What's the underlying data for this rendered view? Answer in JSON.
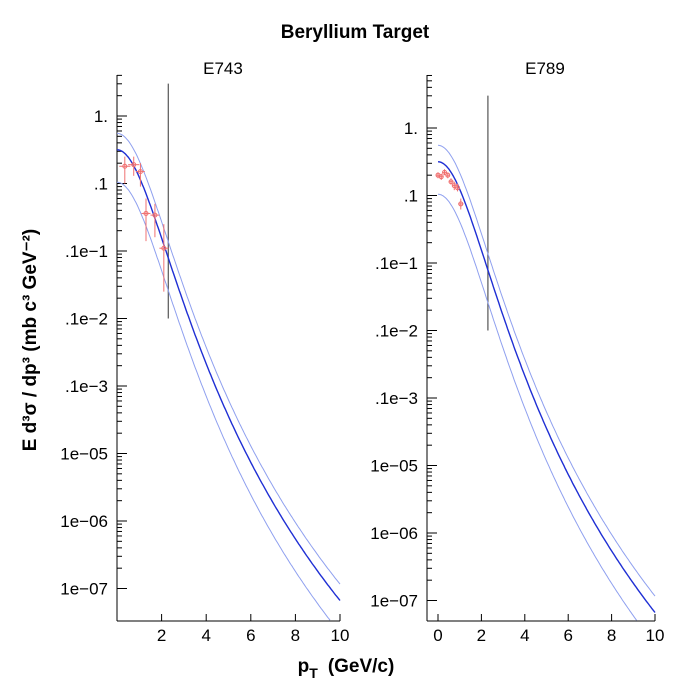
{
  "figure": {
    "title": "Beryllium Target",
    "xlabel_main": "p",
    "xlabel_sub": "T",
    "xlabel_units": "(GeV/c)",
    "ylabel": "E d³σ / dp³  (mb c³ GeV⁻²)"
  },
  "chart_data": [
    {
      "type": "line",
      "title": "E743",
      "yscale": "log",
      "xlim": [
        0,
        10
      ],
      "ylim_log10": [
        -7.3,
        0.48
      ],
      "xticks": [
        2,
        4,
        6,
        8,
        10
      ],
      "xtick_labels": [
        "2",
        "4",
        "6",
        "8",
        "10"
      ],
      "yticks_log10": [
        0,
        -1,
        -2,
        -3,
        -4,
        -5,
        -6,
        -7
      ],
      "ytick_labels": [
        "1.",
        ".1",
        ".1e−1",
        ".1e−2",
        ".1e−3",
        "1e−05",
        "1e−06",
        "1e−07"
      ],
      "cutoff_line": {
        "x": 2.3,
        "y_log10_range": [
          -3.0,
          0.48
        ]
      },
      "model": {
        "norm_log10": -0.5,
        "upper_factor": 1.75,
        "lower_factor": 0.33,
        "colors": [
          "#1f2fd4",
          "#8fa0ef"
        ]
      },
      "series": [
        {
          "name": "E743 data",
          "color": "#f07070",
          "points": [
            {
              "x": 0.35,
              "y": 0.18,
              "xerr": 0.25,
              "ylo": 0.1,
              "yhi": 0.25
            },
            {
              "x": 0.75,
              "y": 0.19,
              "xerr": 0.25,
              "ylo": 0.13,
              "yhi": 0.25
            },
            {
              "x": 1.05,
              "y": 0.15,
              "xerr": 0.2,
              "ylo": 0.09,
              "yhi": 0.2
            },
            {
              "x": 1.3,
              "y": 0.036,
              "xerr": 0.2,
              "ylo": 0.014,
              "yhi": 0.06
            },
            {
              "x": 1.7,
              "y": 0.034,
              "xerr": 0.2,
              "ylo": 0.016,
              "yhi": 0.05
            },
            {
              "x": 2.1,
              "y": 0.011,
              "xerr": 0.2,
              "ylo": 0.0025,
              "yhi": 0.025
            }
          ]
        }
      ]
    },
    {
      "type": "line",
      "title": "E789",
      "yscale": "log",
      "xlim": [
        -0.2,
        10
      ],
      "ylim_log10": [
        -7.3,
        0.48
      ],
      "xticks": [
        0,
        2,
        4,
        6,
        8,
        10
      ],
      "xtick_labels": [
        "0",
        "2",
        "4",
        "6",
        "8",
        "10"
      ],
      "yticks_log10": [
        0,
        -1,
        -2,
        -3,
        -4,
        -5,
        -6,
        -7
      ],
      "ytick_labels": [
        "1.",
        ".1",
        ".1e−1",
        ".1e−2",
        ".1e−3",
        "1e−05",
        "1e−06",
        "1e−07"
      ],
      "cutoff_line": {
        "x": 2.3,
        "y_log10_range": [
          -3.0,
          0.48
        ]
      },
      "model": {
        "norm_log10": -0.5,
        "upper_factor": 1.75,
        "lower_factor": 0.33,
        "colors": [
          "#1f2fd4",
          "#8fa0ef"
        ]
      },
      "series": [
        {
          "name": "E789 data",
          "color": "#f07070",
          "points": [
            {
              "x": 0.0,
              "y": 0.2,
              "xerr": 0.08,
              "ylo": 0.18,
              "yhi": 0.22
            },
            {
              "x": 0.15,
              "y": 0.19,
              "xerr": 0.08,
              "ylo": 0.17,
              "yhi": 0.21
            },
            {
              "x": 0.3,
              "y": 0.22,
              "xerr": 0.08,
              "ylo": 0.2,
              "yhi": 0.245
            },
            {
              "x": 0.45,
              "y": 0.2,
              "xerr": 0.08,
              "ylo": 0.18,
              "yhi": 0.22
            },
            {
              "x": 0.6,
              "y": 0.16,
              "xerr": 0.08,
              "ylo": 0.145,
              "yhi": 0.18
            },
            {
              "x": 0.75,
              "y": 0.14,
              "xerr": 0.08,
              "ylo": 0.12,
              "yhi": 0.16
            },
            {
              "x": 0.9,
              "y": 0.13,
              "xerr": 0.08,
              "ylo": 0.115,
              "yhi": 0.15
            },
            {
              "x": 1.05,
              "y": 0.075,
              "xerr": 0.12,
              "ylo": 0.062,
              "yhi": 0.09
            }
          ]
        }
      ]
    }
  ]
}
